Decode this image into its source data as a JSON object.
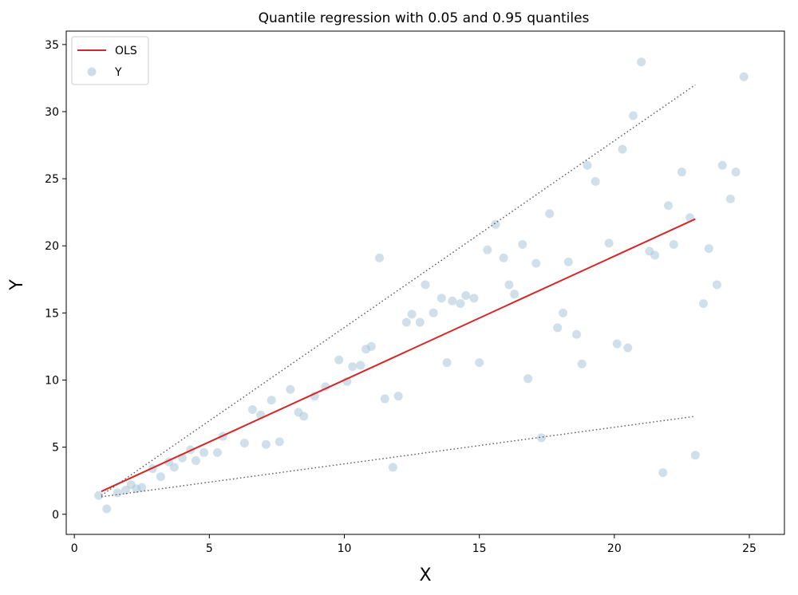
{
  "chart_data": {
    "type": "scatter",
    "title": "Quantile regression with 0.05 and 0.95 quantiles",
    "xlabel": "X",
    "ylabel": "Y",
    "xlim": [
      -0.3,
      26.3
    ],
    "ylim": [
      -1.5,
      36
    ],
    "x_ticks": [
      0,
      5,
      10,
      15,
      20,
      25
    ],
    "y_ticks": [
      0,
      5,
      10,
      15,
      20,
      25,
      30,
      35
    ],
    "grid": false,
    "legend": {
      "placement": "top-left",
      "entries": [
        {
          "label": "OLS",
          "kind": "line",
          "color": "#d62728"
        },
        {
          "label": "Y",
          "kind": "marker",
          "color": "#a9c6d8"
        }
      ]
    },
    "series": [
      {
        "name": "Y",
        "kind": "scatter",
        "color": "#a9c6d8",
        "points": [
          [
            0.9,
            1.4
          ],
          [
            1.2,
            0.4
          ],
          [
            1.6,
            1.6
          ],
          [
            1.9,
            1.8
          ],
          [
            2.1,
            2.2
          ],
          [
            2.3,
            1.9
          ],
          [
            2.5,
            2.0
          ],
          [
            2.9,
            3.4
          ],
          [
            3.2,
            2.8
          ],
          [
            3.5,
            3.9
          ],
          [
            3.7,
            3.5
          ],
          [
            4.0,
            4.2
          ],
          [
            4.3,
            4.8
          ],
          [
            4.5,
            4.0
          ],
          [
            4.8,
            4.6
          ],
          [
            5.3,
            4.6
          ],
          [
            5.5,
            5.8
          ],
          [
            6.3,
            5.3
          ],
          [
            6.6,
            7.8
          ],
          [
            6.9,
            7.4
          ],
          [
            7.1,
            5.2
          ],
          [
            7.3,
            8.5
          ],
          [
            7.6,
            5.4
          ],
          [
            8.0,
            9.3
          ],
          [
            8.3,
            7.6
          ],
          [
            8.5,
            7.3
          ],
          [
            8.9,
            8.8
          ],
          [
            9.3,
            9.5
          ],
          [
            9.8,
            11.5
          ],
          [
            10.1,
            9.9
          ],
          [
            10.3,
            11.0
          ],
          [
            10.6,
            11.1
          ],
          [
            10.8,
            12.3
          ],
          [
            11.0,
            12.5
          ],
          [
            11.3,
            19.1
          ],
          [
            11.5,
            8.6
          ],
          [
            11.8,
            3.5
          ],
          [
            12.0,
            8.8
          ],
          [
            12.3,
            14.3
          ],
          [
            12.5,
            14.9
          ],
          [
            12.8,
            14.3
          ],
          [
            13.0,
            17.1
          ],
          [
            13.3,
            15.0
          ],
          [
            13.6,
            16.1
          ],
          [
            13.8,
            11.3
          ],
          [
            14.0,
            15.9
          ],
          [
            14.3,
            15.7
          ],
          [
            14.5,
            16.3
          ],
          [
            14.8,
            16.1
          ],
          [
            15.0,
            11.3
          ],
          [
            15.3,
            19.7
          ],
          [
            15.6,
            21.6
          ],
          [
            15.9,
            19.1
          ],
          [
            16.1,
            17.1
          ],
          [
            16.3,
            16.4
          ],
          [
            16.6,
            20.1
          ],
          [
            16.8,
            10.1
          ],
          [
            17.1,
            18.7
          ],
          [
            17.3,
            5.7
          ],
          [
            17.6,
            22.4
          ],
          [
            17.9,
            13.9
          ],
          [
            18.1,
            15.0
          ],
          [
            18.3,
            18.8
          ],
          [
            18.6,
            13.4
          ],
          [
            18.8,
            11.2
          ],
          [
            19.0,
            26.0
          ],
          [
            19.3,
            24.8
          ],
          [
            19.8,
            20.2
          ],
          [
            20.1,
            12.7
          ],
          [
            20.3,
            27.2
          ],
          [
            20.5,
            12.4
          ],
          [
            20.7,
            29.7
          ],
          [
            21.0,
            33.7
          ],
          [
            21.3,
            19.6
          ],
          [
            21.5,
            19.3
          ],
          [
            21.8,
            3.1
          ],
          [
            22.0,
            23.0
          ],
          [
            22.2,
            20.1
          ],
          [
            22.5,
            25.5
          ],
          [
            22.8,
            22.1
          ],
          [
            23.0,
            4.4
          ],
          [
            23.3,
            15.7
          ],
          [
            23.5,
            19.8
          ],
          [
            23.8,
            17.1
          ],
          [
            24.0,
            26.0
          ],
          [
            24.3,
            23.5
          ],
          [
            24.5,
            25.5
          ],
          [
            24.8,
            32.6
          ]
        ]
      },
      {
        "name": "OLS",
        "kind": "line",
        "style": "solid",
        "color": "#d62728",
        "points": [
          [
            1.0,
            1.7
          ],
          [
            23.0,
            22.0
          ]
        ]
      },
      {
        "kind": "line",
        "style": "dotted",
        "color": "#555555",
        "points": [
          [
            1.0,
            1.4
          ],
          [
            23.0,
            32.0
          ]
        ]
      },
      {
        "kind": "line",
        "style": "dotted",
        "color": "#555555",
        "points": [
          [
            1.0,
            1.3
          ],
          [
            23.0,
            7.3
          ]
        ]
      }
    ]
  }
}
